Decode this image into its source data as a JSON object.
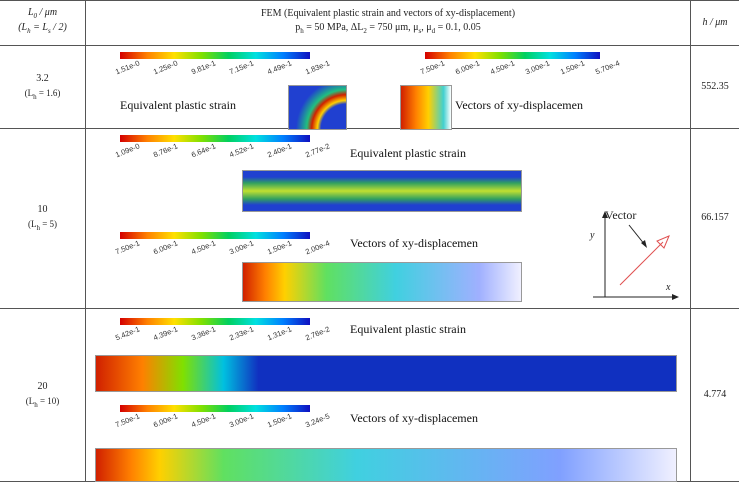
{
  "header": {
    "col1_top": [
      "L",
      "0",
      " / μm"
    ],
    "col1_bottom": [
      "(L",
      "h",
      " = L",
      "s",
      " / 2)"
    ],
    "col2_title": "FEM (Equivalent plastic strain and vectors of xy-displacement)",
    "col2_params": [
      "p",
      "h",
      " = 50 MPa, ΔL",
      "2",
      " = 750 μm, μ",
      "s",
      ", μ",
      "d",
      " = 0.1, 0.05"
    ],
    "col3": "h / μm"
  },
  "rows": [
    {
      "l0": "3.2",
      "lh": [
        "(L",
        "h",
        " = 1.6)"
      ],
      "h": "552.35",
      "strain": {
        "caption": "Equivalent plastic strain",
        "labels": [
          "1.51e-0",
          "1.25e-0",
          "9.81e-1",
          "7.15e-1",
          "4.49e-1",
          "1.83e-1"
        ]
      },
      "displacement": {
        "caption": "Vectors of xy-displacemen",
        "labels": [
          "7.50e-1",
          "6.00e-1",
          "4.50e-1",
          "3.00e-1",
          "1.50e-1",
          "5.70e-4"
        ]
      }
    },
    {
      "l0": "10",
      "lh": [
        "(L",
        "h",
        " = 5)"
      ],
      "h": "66.157",
      "strain": {
        "caption": "Equivalent plastic strain",
        "labels": [
          "1.09e-0",
          "8.76e-1",
          "6.64e-1",
          "4.52e-1",
          "2.40e-1",
          "2.77e-2"
        ]
      },
      "displacement": {
        "caption": "Vectors of xy-displacemen",
        "labels": [
          "7.50e-1",
          "6.00e-1",
          "4.50e-1",
          "3.00e-1",
          "1.50e-1",
          "2.00e-4"
        ]
      }
    },
    {
      "l0": "20",
      "lh": [
        "(L",
        "h",
        " = 10)"
      ],
      "h": "4.774",
      "strain": {
        "caption": "Equivalent plastic strain",
        "labels": [
          "5.42e-1",
          "4.39e-1",
          "3.36e-1",
          "2.33e-1",
          "1.31e-1",
          "2.76e-2"
        ]
      },
      "displacement": {
        "caption": "Vectors of xy-displacemen",
        "labels": [
          "7.50e-1",
          "6.00e-1",
          "4.50e-1",
          "3.00e-1",
          "1.50e-1",
          "3.24e-5"
        ]
      }
    }
  ],
  "inset": {
    "label": "Vector",
    "y": "y",
    "x": "x"
  }
}
